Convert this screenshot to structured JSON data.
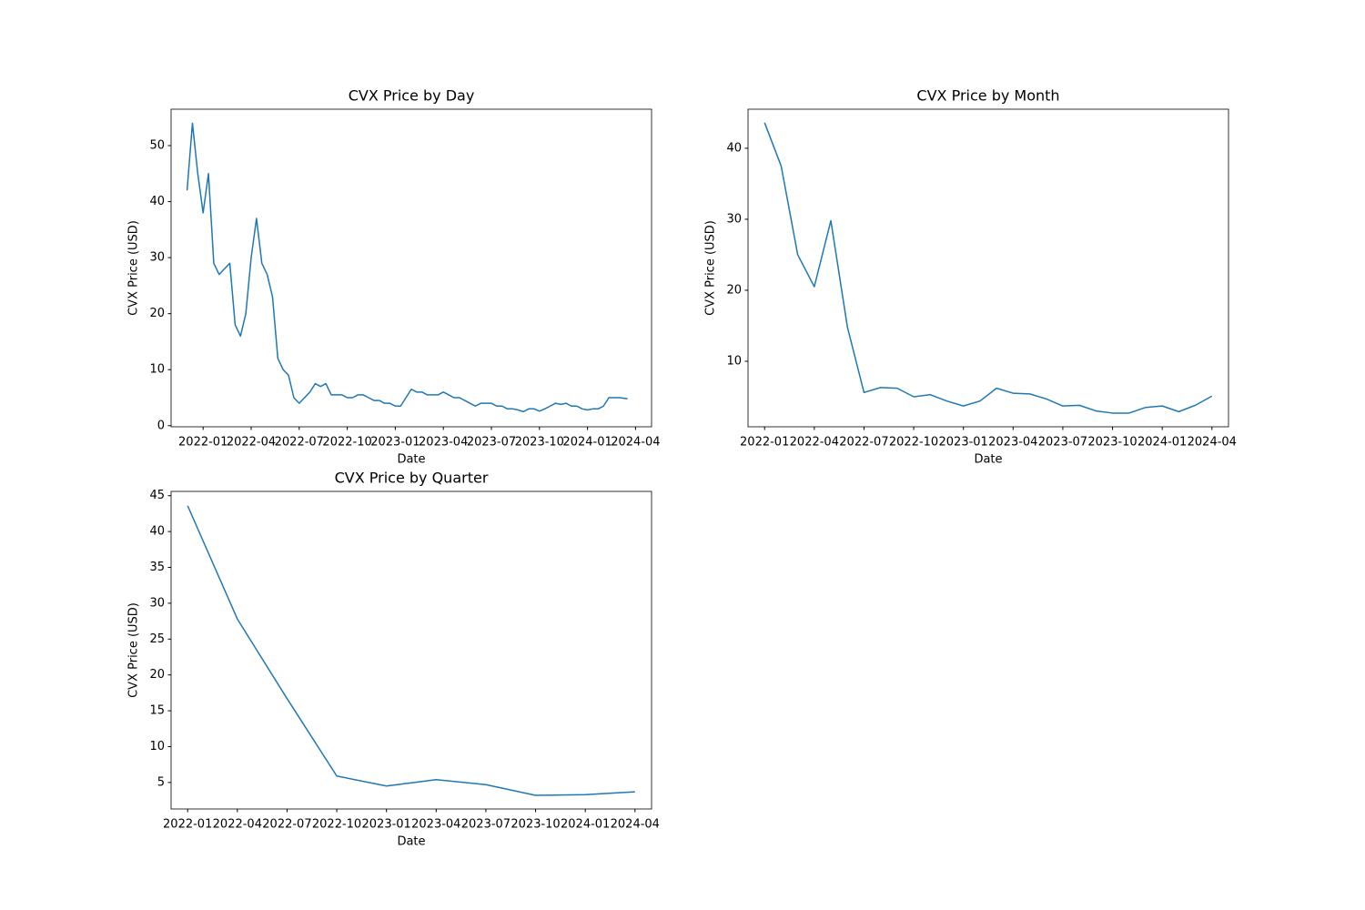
{
  "chart_data": [
    {
      "type": "line",
      "title": "CVX Price by Day",
      "xlabel": "Date",
      "ylabel": "CVX Price (USD)",
      "color": "#1f77b4",
      "x": [
        "2021-12",
        "2021-12",
        "2021-12",
        "2022-01",
        "2022-01",
        "2022-01",
        "2022-02",
        "2022-02",
        "2022-02",
        "2022-03",
        "2022-03",
        "2022-03",
        "2022-04",
        "2022-04",
        "2022-04",
        "2022-05",
        "2022-05",
        "2022-05",
        "2022-06",
        "2022-06",
        "2022-06",
        "2022-07",
        "2022-07",
        "2022-07",
        "2022-08",
        "2022-08",
        "2022-08",
        "2022-09",
        "2022-09",
        "2022-09",
        "2022-10",
        "2022-10",
        "2022-10",
        "2022-11",
        "2022-11",
        "2022-11",
        "2022-12",
        "2022-12",
        "2022-12",
        "2023-01",
        "2023-01",
        "2023-01",
        "2023-02",
        "2023-02",
        "2023-02",
        "2023-03",
        "2023-03",
        "2023-03",
        "2023-04",
        "2023-04",
        "2023-04",
        "2023-05",
        "2023-05",
        "2023-05",
        "2023-06",
        "2023-06",
        "2023-06",
        "2023-07",
        "2023-07",
        "2023-07",
        "2023-08",
        "2023-08",
        "2023-08",
        "2023-09",
        "2023-09",
        "2023-09",
        "2023-10",
        "2023-10",
        "2023-10",
        "2023-11",
        "2023-11",
        "2023-11",
        "2023-12",
        "2023-12",
        "2023-12",
        "2024-01",
        "2024-01",
        "2024-01",
        "2024-02",
        "2024-02",
        "2024-02",
        "2024-03",
        "2024-03"
      ],
      "values": [
        42,
        54,
        45,
        38,
        45,
        29,
        27,
        28,
        29,
        18,
        16,
        20,
        30,
        37,
        29,
        27,
        23,
        12,
        10,
        9,
        5,
        4,
        5,
        6,
        7.5,
        7,
        7.5,
        5.5,
        5.5,
        5.5,
        5,
        5,
        5.5,
        5.5,
        5,
        4.5,
        4.5,
        4,
        4,
        3.5,
        3.5,
        5,
        6.5,
        6,
        6,
        5.5,
        5.5,
        5.5,
        6,
        5.5,
        5,
        5,
        4.5,
        4,
        3.5,
        4,
        4,
        4,
        3.5,
        3.5,
        3,
        3,
        2.8,
        2.5,
        3,
        3,
        2.6,
        3,
        3.5,
        4,
        3.8,
        4,
        3.5,
        3.5,
        3,
        2.8,
        3,
        3,
        3.5,
        5,
        5,
        5,
        4.8
      ],
      "xlim": [
        "2021-11",
        "2024-05"
      ],
      "ylim": [
        -0.2,
        56.5
      ],
      "xticks": [
        "2022-01",
        "2022-04",
        "2022-07",
        "2022-10",
        "2023-01",
        "2023-04",
        "2023-07",
        "2023-10",
        "2024-01",
        "2024-04"
      ],
      "yticks": [
        0,
        10,
        20,
        30,
        40,
        50
      ]
    },
    {
      "type": "line",
      "title": "CVX Price by Month",
      "xlabel": "Date",
      "ylabel": "CVX Price (USD)",
      "color": "#1f77b4",
      "x": [
        "2022-01",
        "2022-02",
        "2022-03",
        "2022-04",
        "2022-05",
        "2022-06",
        "2022-07",
        "2022-08",
        "2022-09",
        "2022-10",
        "2022-11",
        "2022-12",
        "2023-01",
        "2023-02",
        "2023-03",
        "2023-04",
        "2023-05",
        "2023-06",
        "2023-07",
        "2023-08",
        "2023-09",
        "2023-10",
        "2023-11",
        "2023-12",
        "2024-01",
        "2024-02",
        "2024-03",
        "2024-04"
      ],
      "values": [
        43.6,
        37.5,
        25,
        20.5,
        29.8,
        14.8,
        5.6,
        6.3,
        6.2,
        5,
        5.3,
        4.4,
        3.7,
        4.4,
        6.2,
        5.5,
        5.4,
        4.7,
        3.7,
        3.8,
        3,
        2.7,
        2.7,
        3.5,
        3.7,
        2.9,
        3.8,
        5.1
      ],
      "xlim": [
        "2021-12",
        "2024-05"
      ],
      "ylim": [
        0.77,
        45.5
      ],
      "xticks": [
        "2022-01",
        "2022-04",
        "2022-07",
        "2022-10",
        "2023-01",
        "2023-04",
        "2023-07",
        "2023-10",
        "2024-01",
        "2024-04"
      ],
      "yticks": [
        10,
        20,
        30,
        40
      ]
    },
    {
      "type": "line",
      "title": "CVX Price by Quarter",
      "xlabel": "Date",
      "ylabel": "CVX Price (USD)",
      "color": "#1f77b4",
      "x": [
        "2022-01",
        "2022-04",
        "2022-07",
        "2022-10",
        "2023-01",
        "2023-04",
        "2023-07",
        "2023-10",
        "2024-01",
        "2024-04"
      ],
      "values": [
        43.6,
        27.8,
        16.7,
        5.9,
        4.5,
        5.4,
        4.7,
        3.2,
        3.3,
        3.7
      ],
      "xlim": [
        "2021-12",
        "2024-05"
      ],
      "ylim": [
        1.3,
        45.6
      ],
      "xticks": [
        "2022-01",
        "2022-04",
        "2022-07",
        "2022-10",
        "2023-01",
        "2023-04",
        "2023-07",
        "2023-10",
        "2024-01",
        "2024-04"
      ],
      "yticks": [
        5,
        10,
        15,
        20,
        25,
        30,
        35,
        40,
        45
      ]
    }
  ]
}
